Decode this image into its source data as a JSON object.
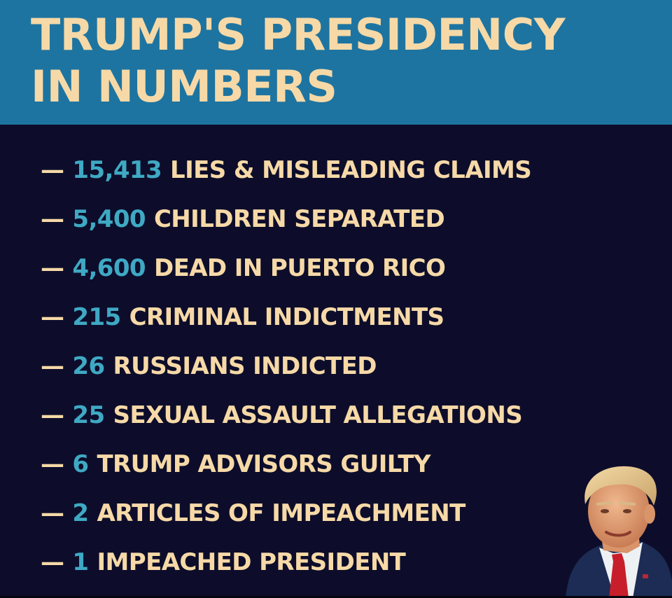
{
  "title": {
    "line1": "TRUMP'S PRESIDENCY",
    "line2": "IN NUMBERS"
  },
  "dash": "—",
  "stats": [
    {
      "number": "15,413",
      "label": "LIES & MISLEADING CLAIMS"
    },
    {
      "number": "5,400",
      "label": "CHILDREN SEPARATED"
    },
    {
      "number": "4,600",
      "label": "DEAD IN PUERTO RICO"
    },
    {
      "number": "215",
      "label": "CRIMINAL INDICTMENTS"
    },
    {
      "number": "26",
      "label": "RUSSIANS INDICTED"
    },
    {
      "number": "25",
      "label": "SEXUAL ASSAULT ALLEGATIONS"
    },
    {
      "number": "6",
      "label": "TRUMP ADVISORS GUILTY"
    },
    {
      "number": "2",
      "label": "ARTICLES OF IMPEACHMENT"
    },
    {
      "number": "1",
      "label": "IMPEACHED PRESIDENT"
    }
  ],
  "colors": {
    "header_band": "#1e74a0",
    "background": "#0d0d2b",
    "title_text": "#f6d9a7",
    "number_text": "#3fa9c4"
  },
  "icons": {
    "portrait": "person-portrait-icon"
  }
}
